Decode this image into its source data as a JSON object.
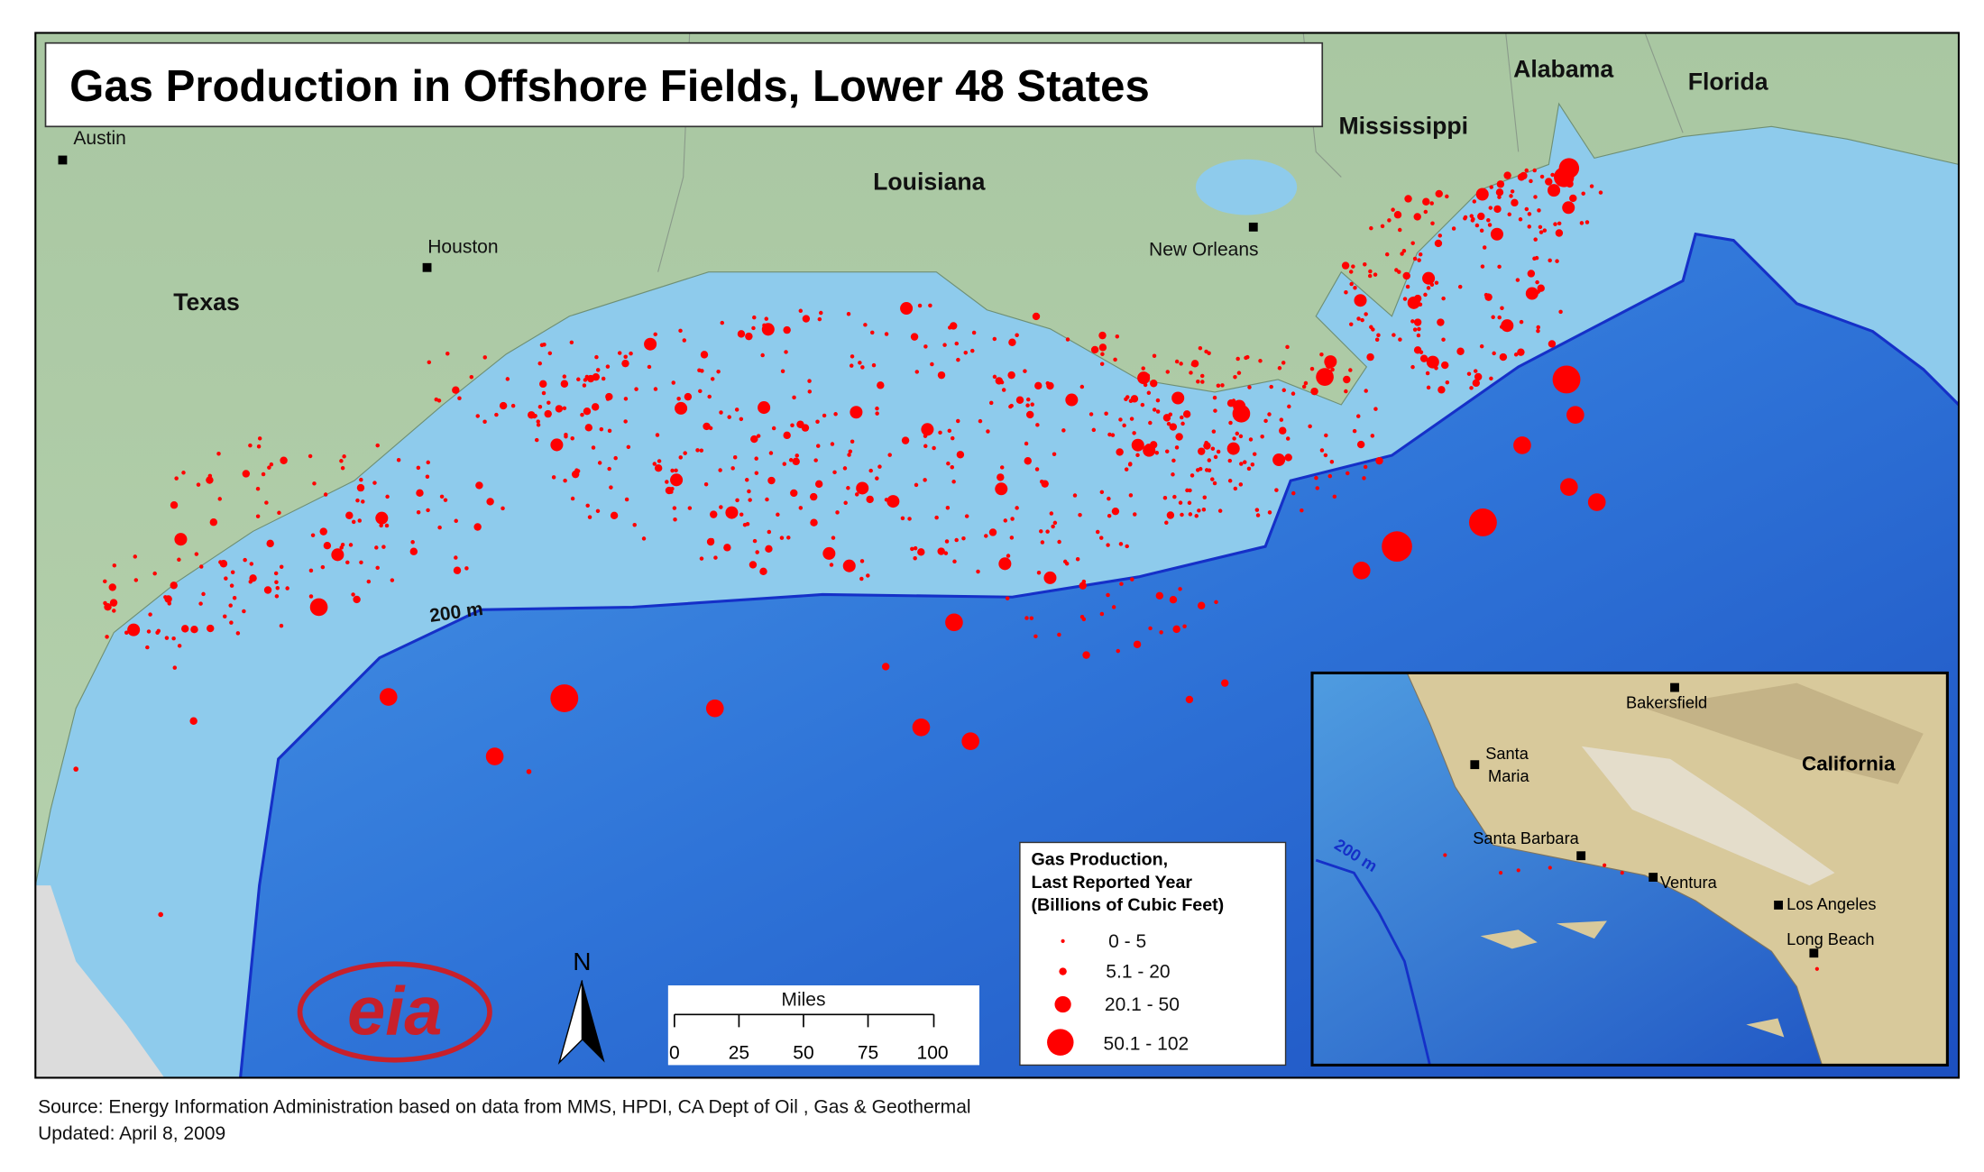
{
  "title": "Gas Production in Offshore Fields, Lower 48 States",
  "places": [
    "Austin",
    "Houston",
    "Texas",
    "Louisiana",
    "New Orleans",
    "Mississippi",
    "Alabama",
    "Florida"
  ],
  "contour_label": "200 m",
  "legend": {
    "title": [
      "Gas Production,",
      "Last Reported Year",
      "(Billions of Cubic Feet)"
    ],
    "classes": [
      "0 - 5",
      "5.1 - 20",
      "20.1 - 50",
      "50.1 - 102"
    ]
  },
  "scale_bar": {
    "unit": "Miles",
    "ticks": [
      0,
      25,
      50,
      75,
      100
    ]
  },
  "north": "N",
  "logo": "eia",
  "inset": {
    "places": [
      "Bakersfield",
      "Santa",
      "Maria",
      "California",
      "Santa Barbara",
      "Ventura",
      "Los Angeles",
      "Long Beach"
    ],
    "contour_label": "200 m"
  },
  "source": "Source: Energy Information Administration based on data from MMS, HPDI, CA Dept of Oil , Gas & Geothermal",
  "updated": "Updated: April 8, 2009"
}
